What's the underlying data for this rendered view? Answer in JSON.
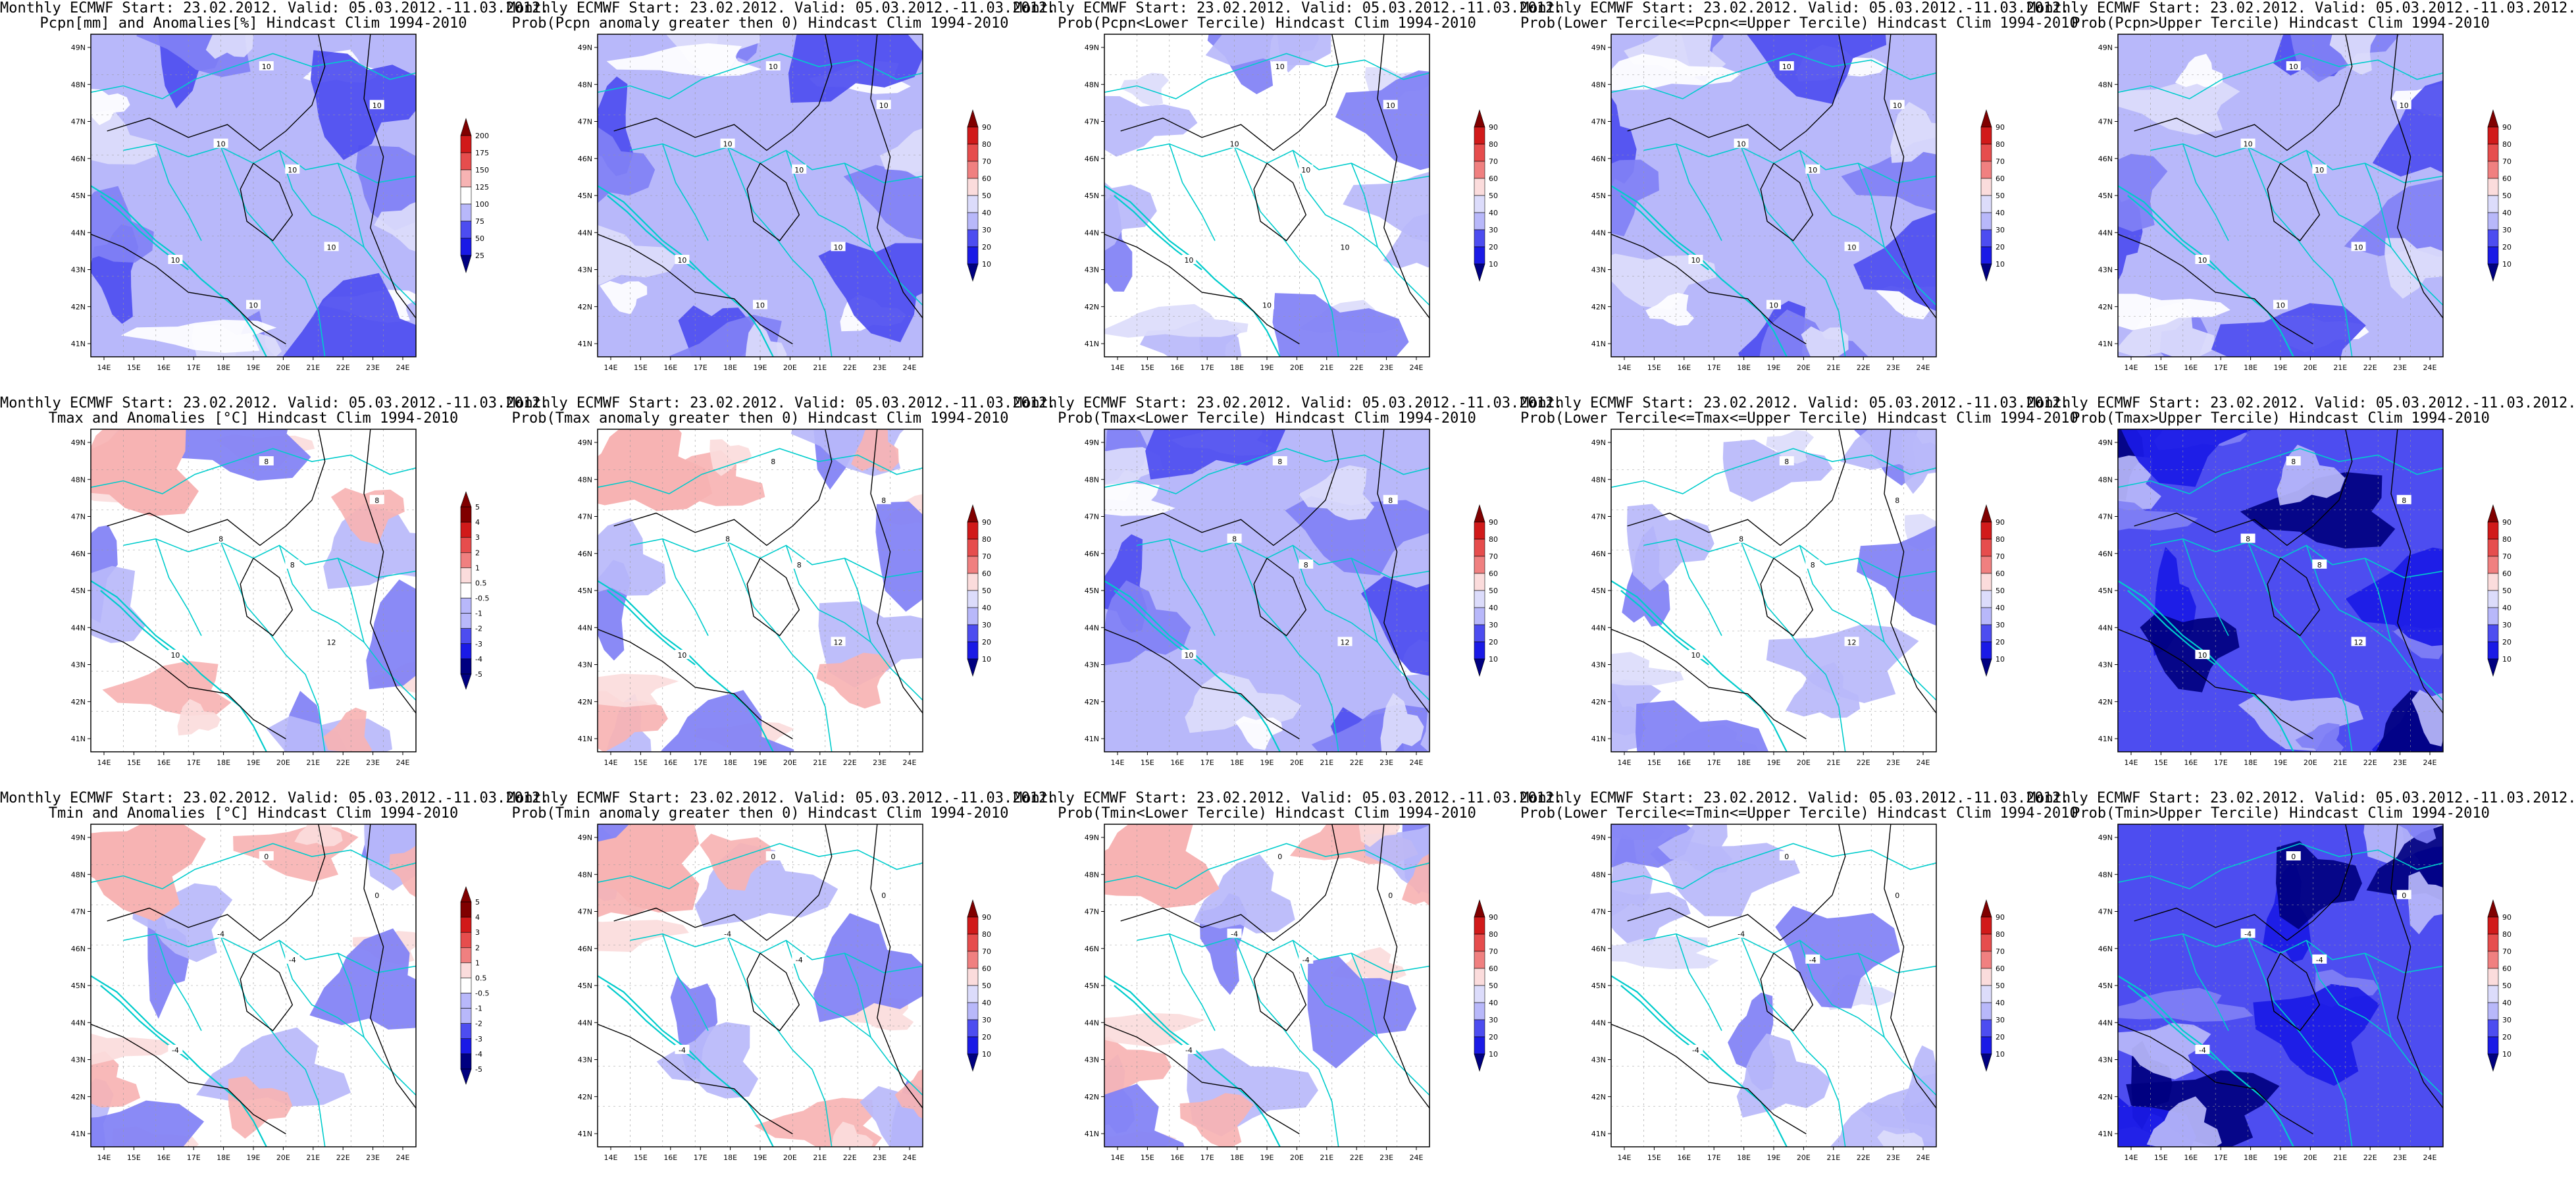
{
  "figure": {
    "colors": {
      "blue_ramp": [
        "#000080",
        "#1a1ae6",
        "#4d4df0",
        "#8080f5",
        "#b8b8fa",
        "#dcdcfb"
      ],
      "red_ramp": [
        "#fbdcdc",
        "#f7b3b3",
        "#f08080",
        "#e64d4d",
        "#d11a1a",
        "#800000"
      ],
      "coast_line": "#00cccc",
      "contour_line": "#000000"
    },
    "lon_ticks": [
      "14E",
      "15E",
      "16E",
      "17E",
      "18E",
      "19E",
      "20E",
      "21E",
      "22E",
      "23E",
      "24E"
    ],
    "lat_ticks": [
      "49N",
      "48N",
      "47N",
      "46N",
      "45N",
      "44N",
      "43N",
      "42N",
      "41N"
    ],
    "panels": [
      {
        "title1": "Monthly ECMWF Start: 23.02.2012. Valid: 05.03.2012.-11.03.2012.",
        "title2": "Pcpn[mm] and Anomalies[%] Hindcast Clim 1994-2010",
        "levels": [
          "200",
          "175",
          "150",
          "125",
          "100",
          "75",
          "50",
          "25"
        ],
        "contour_labels": [
          "10",
          "10",
          "10",
          "10",
          "10",
          "10",
          "10"
        ],
        "fill": "blue"
      },
      {
        "title1": "Monthly ECMWF Start: 23.02.2012. Valid: 05.03.2012.-11.03.2012.",
        "title2": "Prob(Pcpn anomaly greater then 0) Hindcast Clim 1994-2010",
        "levels": [
          "90",
          "80",
          "70",
          "60",
          "50",
          "40",
          "30",
          "20",
          "10"
        ],
        "contour_labels": [
          "10",
          "10",
          "10",
          "10",
          "10",
          "10",
          "10"
        ],
        "fill": "blue"
      },
      {
        "title1": "Monthly ECMWF Start: 23.02.2012. Valid: 05.03.2012.-11.03.2012.",
        "title2": "Prob(Pcpn<Lower Tercile) Hindcast Clim 1994-2010",
        "levels": [
          "90",
          "80",
          "70",
          "60",
          "50",
          "40",
          "30",
          "20",
          "10"
        ],
        "contour_labels": [
          "10",
          "10",
          "10",
          "10",
          "10",
          "10",
          "10"
        ],
        "fill": "light"
      },
      {
        "title1": "Monthly ECMWF Start: 23.02.2012. Valid: 05.03.2012.-11.03.2012.",
        "title2": "Prob(Lower Tercile<=Pcpn<=Upper Tercile) Hindcast Clim 1994-2010",
        "levels": [
          "90",
          "80",
          "70",
          "60",
          "50",
          "40",
          "30",
          "20",
          "10"
        ],
        "contour_labels": [
          "10",
          "10",
          "10",
          "10",
          "10",
          "10",
          "10"
        ],
        "fill": "blue"
      },
      {
        "title1": "Monthly ECMWF Start: 23.02.2012. Valid: 05.03.2012.-11.03.2012.",
        "title2": "Prob(Pcpn>Upper Tercile) Hindcast Clim 1994-2010",
        "levels": [
          "90",
          "80",
          "70",
          "60",
          "50",
          "40",
          "30",
          "20",
          "10"
        ],
        "contour_labels": [
          "10",
          "10",
          "10",
          "10",
          "10",
          "10",
          "10"
        ],
        "fill": "blue"
      },
      {
        "title1": "Monthly ECMWF Start: 23.02.2012. Valid: 05.03.2012.-11.03.2012.",
        "title2": "Tmax and Anomalies [°C] Hindcast Clim 1994-2010",
        "levels": [
          "5",
          "4",
          "3",
          "2",
          "1",
          "0.5",
          "-0.5",
          "-1",
          "-2",
          "-3",
          "-4",
          "-5"
        ],
        "contour_labels": [
          "8",
          "8",
          "8",
          "8",
          "10",
          "12"
        ],
        "fill": "mixed"
      },
      {
        "title1": "Monthly ECMWF Start: 23.02.2012. Valid: 05.03.2012.-11.03.2012.",
        "title2": "Prob(Tmax anomaly greater then 0) Hindcast Clim 1994-2010",
        "levels": [
          "90",
          "80",
          "70",
          "60",
          "50",
          "40",
          "30",
          "20",
          "10"
        ],
        "contour_labels": [
          "8",
          "8",
          "8",
          "8",
          "10",
          "12"
        ],
        "fill": "mixed"
      },
      {
        "title1": "Monthly ECMWF Start: 23.02.2012. Valid: 05.03.2012.-11.03.2012.",
        "title2": "Prob(Tmax<Lower Tercile) Hindcast Clim 1994-2010",
        "levels": [
          "90",
          "80",
          "70",
          "60",
          "50",
          "40",
          "30",
          "20",
          "10"
        ],
        "contour_labels": [
          "8",
          "8",
          "8",
          "8",
          "10",
          "12"
        ],
        "fill": "blue"
      },
      {
        "title1": "Monthly ECMWF Start: 23.02.2012. Valid: 05.03.2012.-11.03.2012.",
        "title2": "Prob(Lower Tercile<=Tmax<=Upper Tercile) Hindcast Clim 1994-2010",
        "levels": [
          "90",
          "80",
          "70",
          "60",
          "50",
          "40",
          "30",
          "20",
          "10"
        ],
        "contour_labels": [
          "8",
          "8",
          "8",
          "8",
          "10",
          "12"
        ],
        "fill": "light"
      },
      {
        "title1": "Monthly ECMWF Start: 23.02.2012. Valid: 05.03.2012.-11.03.2012.",
        "title2": "Prob(Tmax>Upper Tercile) Hindcast Clim 1994-2010",
        "levels": [
          "90",
          "80",
          "70",
          "60",
          "50",
          "40",
          "30",
          "20",
          "10"
        ],
        "contour_labels": [
          "8",
          "8",
          "8",
          "8",
          "10",
          "12"
        ],
        "fill": "deep"
      },
      {
        "title1": "Monthly ECMWF Start: 23.02.2012. Valid: 05.03.2012.-11.03.2012.",
        "title2": "Tmin and Anomalies [°C] Hindcast Clim 1994-2010",
        "levels": [
          "5",
          "4",
          "3",
          "2",
          "1",
          "0.5",
          "-0.5",
          "-1",
          "-2",
          "-3",
          "-4",
          "-5"
        ],
        "contour_labels": [
          "0",
          "0",
          "-4",
          "-4",
          "-4"
        ],
        "fill": "mixed"
      },
      {
        "title1": "Monthly ECMWF Start: 23.02.2012. Valid: 05.03.2012.-11.03.2012.",
        "title2": "Prob(Tmin anomaly greater then 0) Hindcast Clim 1994-2010",
        "levels": [
          "90",
          "80",
          "70",
          "60",
          "50",
          "40",
          "30",
          "20",
          "10"
        ],
        "contour_labels": [
          "0",
          "0",
          "-4",
          "-4",
          "-4"
        ],
        "fill": "mixed"
      },
      {
        "title1": "Monthly ECMWF Start: 23.02.2012. Valid: 05.03.2012.-11.03.2012.",
        "title2": "Prob(Tmin<Lower Tercile) Hindcast Clim 1994-2010",
        "levels": [
          "90",
          "80",
          "70",
          "60",
          "50",
          "40",
          "30",
          "20",
          "10"
        ],
        "contour_labels": [
          "0",
          "0",
          "-4",
          "-4",
          "-4"
        ],
        "fill": "mixed"
      },
      {
        "title1": "Monthly ECMWF Start: 23.02.2012. Valid: 05.03.2012.-11.03.2012.",
        "title2": "Prob(Lower Tercile<=Tmin<=Upper Tercile) Hindcast Clim 1994-2010",
        "levels": [
          "90",
          "80",
          "70",
          "60",
          "50",
          "40",
          "30",
          "20",
          "10"
        ],
        "contour_labels": [
          "0",
          "0",
          "-4",
          "-4",
          "-4"
        ],
        "fill": "light"
      },
      {
        "title1": "Monthly ECMWF Start: 23.02.2012. Valid: 05.03.2012.-11.03.2012.",
        "title2": "Prob(Tmin>Upper Tercile) Hindcast Clim 1994-2010",
        "levels": [
          "90",
          "80",
          "70",
          "60",
          "50",
          "40",
          "30",
          "20",
          "10"
        ],
        "contour_labels": [
          "0",
          "0",
          "-4",
          "-4",
          "-4"
        ],
        "fill": "deep"
      }
    ]
  }
}
